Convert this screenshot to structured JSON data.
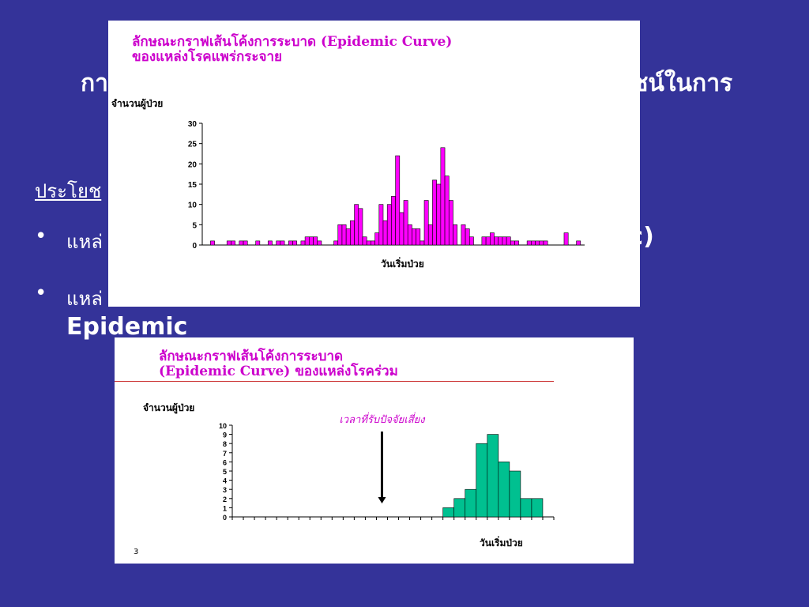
{
  "slide": {
    "title_left": "กา",
    "title_right": "ชน์ในการ",
    "benefit_label": "ประโยช",
    "bullet1_left": "แหล่",
    "bullet1_right": "ic)",
    "bullet2_left": "แหล่",
    "bullet2_line2": "Epidemic",
    "page_number": "3",
    "background_color": "#343399"
  },
  "chart_data": [
    {
      "type": "bar",
      "title_line1": "ลักษณะกราฟเส้นโค้งการระบาด (Epidemic Curve)",
      "title_line2": "ของแหล่งโรคแพร่กระจาย",
      "ylabel": "จำนวนผู้ป่วย",
      "xlabel": "วันเริ่มป่วย",
      "ylim": [
        0,
        30
      ],
      "yticks": [
        "0",
        "5",
        "10",
        "15",
        "20",
        "25",
        "30"
      ],
      "color": "#ff00ff",
      "values": [
        0,
        0,
        1,
        0,
        0,
        0,
        1,
        1,
        0,
        1,
        1,
        0,
        0,
        1,
        0,
        0,
        1,
        0,
        1,
        1,
        0,
        1,
        1,
        0,
        1,
        2,
        2,
        2,
        1,
        0,
        0,
        0,
        1,
        5,
        5,
        4,
        6,
        10,
        9,
        2,
        1,
        1,
        3,
        10,
        6,
        10,
        12,
        22,
        8,
        11,
        5,
        4,
        4,
        1,
        11,
        5,
        16,
        15,
        24,
        17,
        11,
        5,
        0,
        5,
        4,
        2,
        0,
        0,
        2,
        2,
        3,
        2,
        2,
        2,
        2,
        1,
        1,
        0,
        0,
        1,
        1,
        1,
        1,
        1,
        0,
        0,
        0,
        0,
        3,
        0,
        0,
        1,
        0
      ]
    },
    {
      "type": "bar",
      "title_line1": "ลักษณะกราฟเส้นโค้งการระบาด",
      "title_line2": "(Epidemic Curve) ของแหล่งโรคร่วม",
      "ylabel": "จำนวนผู้ป่วย",
      "xlabel": "วันเริ่มป่วย",
      "annotation": "เวลาที่รับปัจจัยเสี่ยง",
      "annotation_category_index": 13,
      "ylim": [
        0,
        10
      ],
      "yticks": [
        "0",
        "1",
        "2",
        "3",
        "4",
        "5",
        "6",
        "7",
        "8",
        "9",
        "10"
      ],
      "color": "#00c090",
      "values": [
        0,
        0,
        0,
        0,
        0,
        0,
        0,
        0,
        0,
        0,
        0,
        0,
        0,
        0,
        0,
        0,
        0,
        0,
        0,
        1,
        2,
        3,
        8,
        9,
        6,
        5,
        2,
        2,
        0
      ]
    }
  ]
}
